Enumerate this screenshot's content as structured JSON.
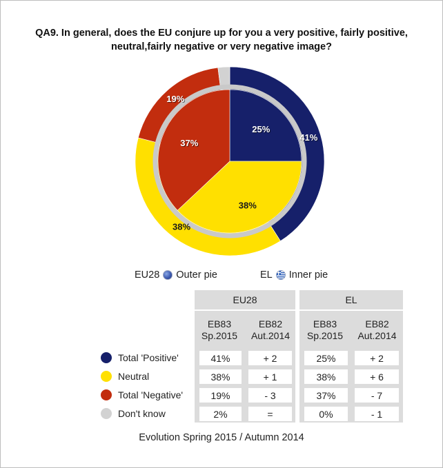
{
  "title": "QA9. In general, does the EU conjure up for you a very positive, fairly positive, neutral,fairly negative or very negative image?",
  "chart_data": {
    "type": "pie",
    "outer": {
      "label": "EU28",
      "legend_text": "Outer pie",
      "values": [
        {
          "category": "Total 'Positive'",
          "value": 41,
          "label": "41%"
        },
        {
          "category": "Neutral",
          "value": 38,
          "label": "38%"
        },
        {
          "category": "Total 'Negative'",
          "value": 19,
          "label": "19%"
        },
        {
          "category": "Don't know",
          "value": 2,
          "label": ""
        }
      ]
    },
    "inner": {
      "label": "EL",
      "legend_text": "Inner pie",
      "values": [
        {
          "category": "Total 'Positive'",
          "value": 25,
          "label": "25%"
        },
        {
          "category": "Neutral",
          "value": 38,
          "label": "38%"
        },
        {
          "category": "Total 'Negative'",
          "value": 37,
          "label": "37%"
        },
        {
          "category": "Don't know",
          "value": 0,
          "label": ""
        }
      ]
    }
  },
  "colors": {
    "positive": "#16206a",
    "neutral": "#ffe000",
    "negative": "#c22d0e",
    "dont_know": "#d2d2d2",
    "separator": "#c9c9c9",
    "table_grey": "#dcdcdc"
  },
  "table": {
    "groups": [
      "EU28",
      "EL"
    ],
    "columns": [
      {
        "line1": "EB83",
        "line2": "Sp.2015"
      },
      {
        "line1": "EB82",
        "line2": "Aut.2014"
      },
      {
        "line1": "EB83",
        "line2": "Sp.2015"
      },
      {
        "line1": "EB82",
        "line2": "Aut.2014"
      }
    ],
    "rows": [
      {
        "label": "Total 'Positive'",
        "color": "#16206a",
        "cells": [
          "41%",
          "+ 2",
          "25%",
          "+ 2"
        ]
      },
      {
        "label": "Neutral",
        "color": "#ffe000",
        "cells": [
          "38%",
          "+ 1",
          "38%",
          "+ 6"
        ]
      },
      {
        "label": "Total 'Negative'",
        "color": "#c22d0e",
        "cells": [
          "19%",
          "- 3",
          "37%",
          "- 7"
        ]
      },
      {
        "label": "Don't know",
        "color": "#d2d2d2",
        "cells": [
          "2%",
          "=",
          "0%",
          "- 1"
        ]
      }
    ]
  },
  "footer": "Evolution Spring 2015 / Autumn 2014"
}
